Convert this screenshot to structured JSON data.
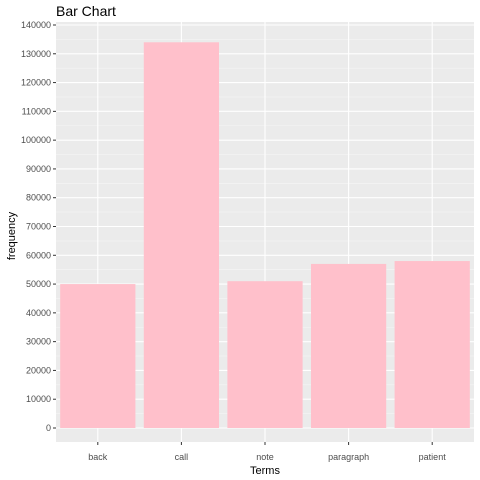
{
  "chart_data": {
    "type": "bar",
    "title": "Bar Chart",
    "xlabel": "Terms",
    "ylabel": "frequency",
    "categories": [
      "back",
      "call",
      "note",
      "paragraph",
      "patient"
    ],
    "values": [
      50000,
      134000,
      51000,
      57000,
      58000
    ],
    "ylim": [
      0,
      140000
    ],
    "yticks": [
      0,
      10000,
      20000,
      30000,
      40000,
      50000,
      60000,
      70000,
      80000,
      90000,
      100000,
      110000,
      120000,
      130000,
      140000
    ],
    "grid": true,
    "legend": "none",
    "colors": {
      "bar": "#FFC0CB",
      "panel": "#EBEBEB",
      "grid_major": "#FFFFFF",
      "grid_minor": "#F5F5F5"
    }
  }
}
